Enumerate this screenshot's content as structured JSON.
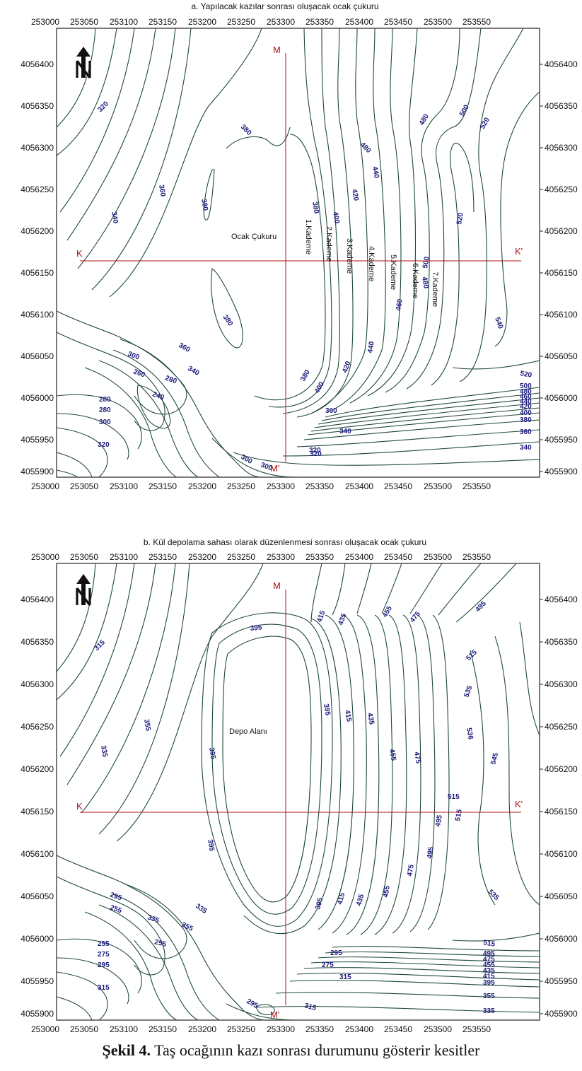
{
  "figure": {
    "caption_label": "Şekil 4.",
    "caption_text": "Taş ocağının kazı sonrası durumunu gösterir kesitler"
  },
  "maps": [
    {
      "id": "a",
      "title": "a. Yapılacak kazılar sonrası oluşacak ocak çukuru",
      "x_ticks": [
        "253000",
        "253050",
        "253100",
        "253150",
        "253200",
        "253250",
        "253300",
        "253350",
        "253400",
        "253450",
        "253500",
        "253550"
      ],
      "y_ticks": [
        "4056400",
        "4056350",
        "4056300",
        "4056250",
        "4056200",
        "4056150",
        "4056100",
        "4056050",
        "4056000",
        "4055950",
        "4055900"
      ],
      "section_labels": {
        "k": "K",
        "k2": "K'",
        "m": "M",
        "m2": "M'"
      },
      "center_label": "Ocak Çukuru",
      "kademe": [
        "1.Kademe",
        "2.Kademe",
        "3.Kademe",
        "4.Kademe",
        "5.Kademe",
        "6.Kademe",
        "7.Kademe"
      ],
      "contour_labels": [
        "320",
        "380",
        "360",
        "380",
        "340",
        "380",
        "380",
        "400",
        "420",
        "440",
        "480",
        "480",
        "500",
        "520",
        "520",
        "500",
        "480",
        "460",
        "440",
        "420",
        "400",
        "380",
        "360",
        "340",
        "320",
        "300",
        "300",
        "260",
        "280",
        "240",
        "280",
        "280",
        "300",
        "320",
        "340",
        "360",
        "380",
        "400",
        "420",
        "440",
        "460",
        "480",
        "500",
        "520",
        "540",
        "360",
        "340",
        "320",
        "300"
      ]
    },
    {
      "id": "b",
      "title": "b. Kül depolama sahası olarak düzenlenmesi sonrası oluşacak ocak çukuru",
      "x_ticks": [
        "253000",
        "253050",
        "253100",
        "253150",
        "253200",
        "253250",
        "253300",
        "253350",
        "253400",
        "253450",
        "253500",
        "253550"
      ],
      "y_ticks": [
        "4056400",
        "4056350",
        "4056300",
        "4056250",
        "4056200",
        "4056150",
        "4056100",
        "4056050",
        "4056000",
        "4055950",
        "4055900"
      ],
      "section_labels": {
        "k": "K",
        "k2": "K'",
        "m": "M",
        "m2": "M'"
      },
      "center_label": "Depo Alanı",
      "contour_labels": [
        "315",
        "335",
        "355",
        "395",
        "395",
        "395",
        "415",
        "435",
        "455",
        "475",
        "495",
        "515",
        "535",
        "536",
        "545",
        "515",
        "515",
        "495",
        "475",
        "455",
        "435",
        "415",
        "395",
        "395",
        "415",
        "435",
        "455",
        "475",
        "495",
        "535",
        "515",
        "495",
        "475",
        "455",
        "435",
        "415",
        "395",
        "355",
        "335",
        "315",
        "295",
        "295",
        "255",
        "255",
        "275",
        "295",
        "315",
        "335",
        "355",
        "335",
        "315",
        "295",
        "275",
        "255"
      ]
    }
  ]
}
